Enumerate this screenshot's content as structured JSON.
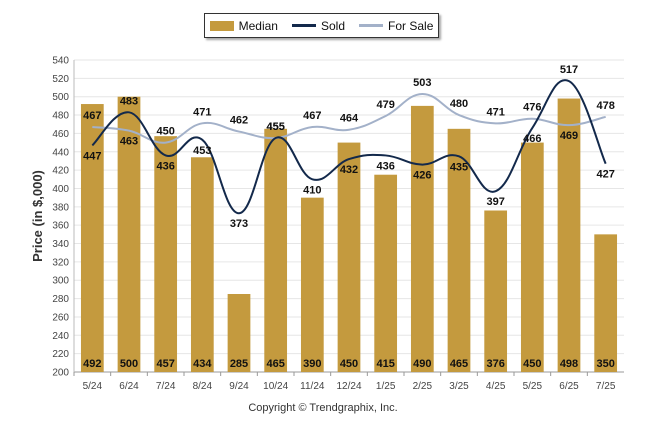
{
  "legend": {
    "median_label": "Median",
    "sold_label": "Sold",
    "for_sale_label": "For Sale"
  },
  "footer": {
    "copyright": "Copyright © Trendgraphix, Inc."
  },
  "colors": {
    "median": "#C49A3E",
    "sold": "#13294B",
    "for_sale": "#A3B1C9",
    "grid": "#e6e6e6"
  },
  "chart_data": {
    "type": "bar",
    "ylabel": "Price (in $,000)",
    "ylim": [
      200,
      540
    ],
    "ytick_step": 20,
    "grid": true,
    "legend_position": "top-center",
    "categories": [
      "5/24",
      "6/24",
      "7/24",
      "8/24",
      "9/24",
      "10/24",
      "11/24",
      "12/24",
      "1/25",
      "2/25",
      "3/25",
      "4/25",
      "5/25",
      "6/25",
      "7/25"
    ],
    "series": [
      {
        "name": "Median",
        "kind": "bar",
        "values": [
          492,
          500,
          457,
          434,
          285,
          465,
          390,
          450,
          415,
          490,
          465,
          376,
          450,
          498,
          350
        ]
      },
      {
        "name": "Sold",
        "kind": "line",
        "values": [
          447,
          483,
          436,
          453,
          373,
          455,
          410,
          432,
          436,
          426,
          435,
          397,
          466,
          517,
          427
        ]
      },
      {
        "name": "For Sale",
        "kind": "line",
        "values": [
          467,
          463,
          450,
          471,
          462,
          455,
          467,
          464,
          479,
          503,
          480,
          471,
          476,
          469,
          478
        ]
      }
    ]
  }
}
